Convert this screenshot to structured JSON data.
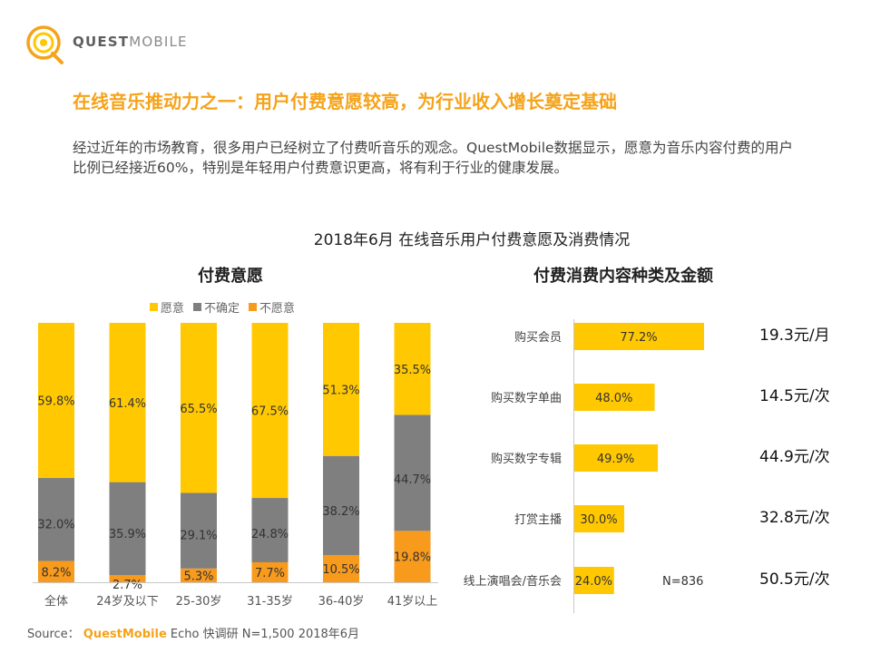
{
  "brand": {
    "name_bold": "QUEST",
    "name_light": "MOBILE"
  },
  "headline": "在线音乐推动力之一：用户付费意愿较高，为行业收入增长奠定基础",
  "summary": "经过近年的市场教育，很多用户已经树立了付费听音乐的观念。QuestMobile数据显示，愿意为音乐内容付费的用户比例已经接近60%，特别是年轻用户付费意识更高，将有利于行业的健康发展。",
  "main_title": "2018年6月 在线音乐用户付费意愿及消费情况",
  "source": {
    "label": "Source：",
    "brand": "QuestMobile",
    "text": "Echo 快调研 N=1,500 2018年6月"
  },
  "colors": {
    "yellow": "#ffc800",
    "gray": "#7f7f7f",
    "orange": "#f89a1c",
    "accent": "#f5a31a"
  },
  "chart_data": [
    {
      "type": "bar",
      "stacked": true,
      "title": "付费意愿",
      "categories": [
        "全体",
        "24岁及以下",
        "25-30岁",
        "31-35岁",
        "36-40岁",
        "41岁以上"
      ],
      "series": [
        {
          "name": "不愿意",
          "color": "#f89a1c",
          "values": [
            8.2,
            2.7,
            5.3,
            7.7,
            10.5,
            19.8
          ]
        },
        {
          "name": "不确定",
          "color": "#7f7f7f",
          "values": [
            32.0,
            35.9,
            29.1,
            24.8,
            38.2,
            44.7
          ]
        },
        {
          "name": "愿意",
          "color": "#ffc800",
          "values": [
            59.8,
            61.4,
            65.5,
            67.5,
            51.3,
            35.5
          ]
        }
      ],
      "legend_order": [
        "愿意",
        "不确定",
        "不愿意"
      ],
      "labels": {
        "不愿意": [
          "8.2%",
          "2.7%",
          "5.3%",
          "7.7%",
          "10.5%",
          "19.8%"
        ],
        "不确定": [
          "32.0%",
          "35.9%",
          "29.1%",
          "24.8%",
          "38.2%",
          "44.7%"
        ],
        "愿意": [
          "59.8%",
          "61.4%",
          "65.5%",
          "67.5%",
          "51.3%",
          "35.5%"
        ]
      },
      "ylim": [
        0,
        100
      ],
      "legend_position": "top"
    },
    {
      "type": "bar",
      "orientation": "horizontal",
      "title": "付费消费内容种类及金额",
      "categories": [
        "购买会员",
        "购买数字单曲",
        "购买数字专辑",
        "打赏主播",
        "线上演唱会/音乐会"
      ],
      "values": [
        77.2,
        48.0,
        49.9,
        30.0,
        24.0
      ],
      "value_labels": [
        "77.2%",
        "48.0%",
        "49.9%",
        "30.0%",
        "24.0%"
      ],
      "amounts": [
        "19.3元/月",
        "14.5元/次",
        "44.9元/次",
        "32.8元/次",
        "50.5元/次"
      ],
      "note": "N=836",
      "color": "#ffc800"
    }
  ]
}
